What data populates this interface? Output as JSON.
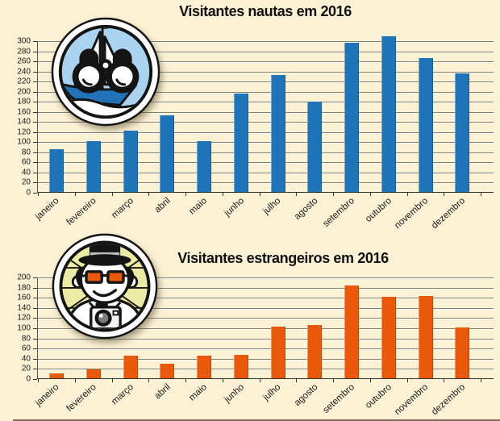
{
  "page": {
    "background_color": "#fbf1d4",
    "gridline_color": "#81816e",
    "axis_color": "#33332c",
    "label_color": "#1a1a1a",
    "title_color": "#111111"
  },
  "chart_data": [
    {
      "type": "bar",
      "title": "Visitantes nautas em 2016",
      "categories": [
        "janeiro",
        "fevereiro",
        "março",
        "abril",
        "maio",
        "junho",
        "julho",
        "agosto",
        "setembro",
        "outubro",
        "novembro",
        "dezembro"
      ],
      "values": [
        85,
        100,
        121,
        152,
        100,
        195,
        231,
        178,
        296,
        308,
        265,
        234
      ],
      "xlabel": "",
      "ylabel": "",
      "ylim": [
        0,
        300
      ],
      "ytick_step": 20,
      "grid": true,
      "legend_position": "none",
      "bar_color": "#1f73b7",
      "badge_icon": "sailboat-binoculars-badge"
    },
    {
      "type": "bar",
      "title": "Visitantes estrangeiros em 2016",
      "categories": [
        "janeiro",
        "fevereiro",
        "março",
        "abril",
        "maio",
        "junho",
        "julho",
        "agosto",
        "setembro",
        "outubro",
        "novembro",
        "dezembro"
      ],
      "values": [
        9,
        17,
        45,
        28,
        45,
        46,
        101,
        105,
        182,
        160,
        162,
        100
      ],
      "xlabel": "",
      "ylabel": "",
      "ylim": [
        0,
        200
      ],
      "ytick_step": 20,
      "grid": true,
      "legend_position": "none",
      "bar_color": "#e8590c",
      "badge_icon": "tourist-camera-badge"
    }
  ]
}
